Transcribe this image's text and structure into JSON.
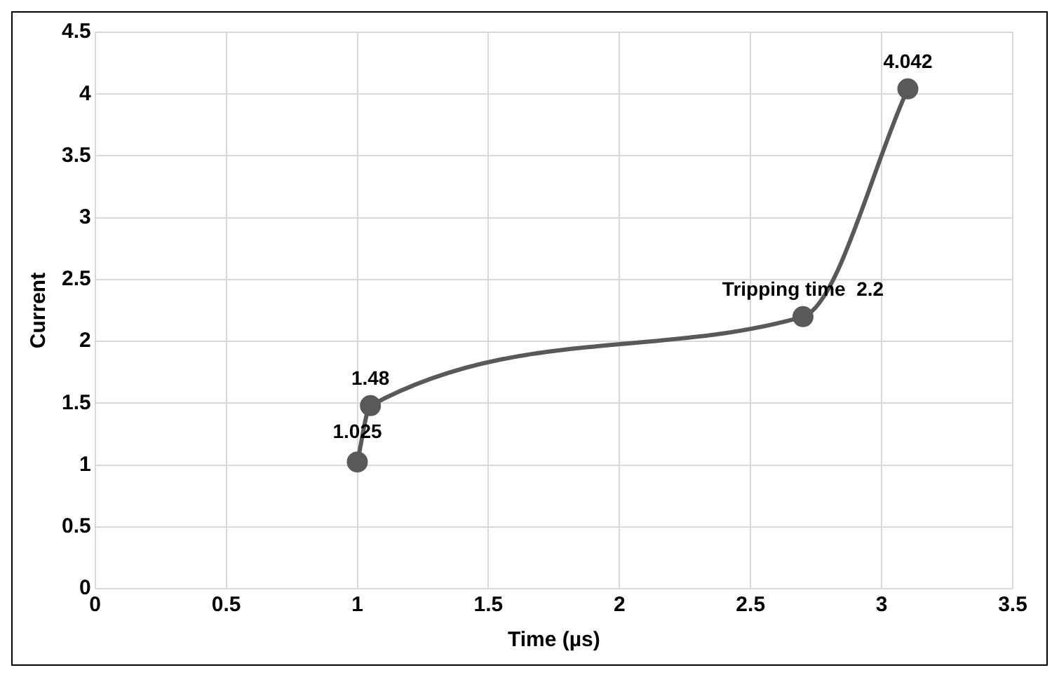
{
  "chart_data": {
    "type": "line",
    "xlabel": "Time (µs)",
    "ylabel": "Current",
    "x": [
      1,
      1.05,
      2.7,
      3.1
    ],
    "series": [
      {
        "color": "#595959",
        "values": [
          1.025,
          1.48,
          2.2,
          4.042
        ],
        "value_labels": [
          "1.025",
          "1.48",
          "Tripping time  2.2",
          "4.042"
        ]
      }
    ],
    "xlim": [
      0,
      3.5
    ],
    "xticks": [
      0,
      0.5,
      1,
      1.5,
      2,
      2.5,
      3,
      3.5
    ],
    "ylim": [
      0,
      4.5
    ],
    "yticks": [
      0,
      0.5,
      1,
      1.5,
      2,
      2.5,
      3,
      3.5,
      4,
      4.5
    ],
    "grid": true,
    "legend": false,
    "marker": "circle",
    "line_style": "solid"
  }
}
